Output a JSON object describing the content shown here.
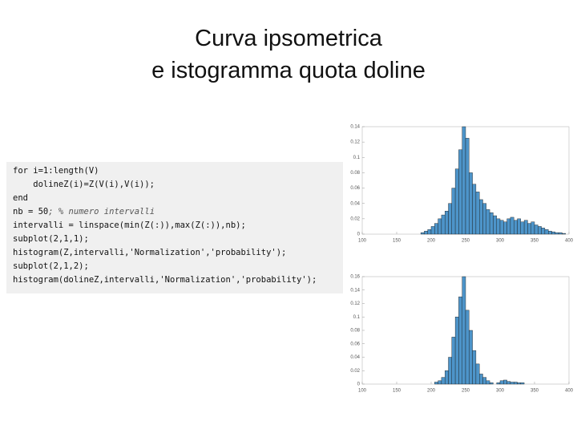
{
  "title": {
    "lines": [
      "Curva ipsometrica",
      "e istogramma quota doline"
    ]
  },
  "code": {
    "lines": [
      "for i=1:length(V)",
      "    dolineZ(i)=Z(V(i),V(i));",
      "end",
      {
        "code": "nb = 50",
        "comment": "; % numero intervalli"
      },
      "intervalli = linspace(min(Z(:)),max(Z(:)),nb);",
      "subplot(2,1,1);",
      "histogram(Z,intervalli,'Normalization','probability');",
      "subplot(2,1,2);",
      "histogram(dolineZ,intervalli,'Normalization','probability');"
    ]
  },
  "chart_data": [
    {
      "type": "histogram",
      "color": "#4d94c9",
      "bins": [
        185,
        190,
        195,
        200,
        205,
        210,
        215,
        220,
        225,
        230,
        235,
        240,
        245,
        250,
        255,
        260,
        265,
        270,
        275,
        280,
        285,
        290,
        295,
        300,
        305,
        310,
        315,
        320,
        325,
        330,
        335,
        340,
        345,
        350,
        355,
        360,
        365,
        370,
        375,
        380,
        385,
        390,
        395
      ],
      "values": [
        0.002,
        0.004,
        0.006,
        0.01,
        0.014,
        0.02,
        0.025,
        0.03,
        0.04,
        0.06,
        0.085,
        0.11,
        0.14,
        0.125,
        0.08,
        0.065,
        0.055,
        0.045,
        0.04,
        0.032,
        0.028,
        0.024,
        0.02,
        0.018,
        0.016,
        0.02,
        0.022,
        0.018,
        0.02,
        0.016,
        0.018,
        0.014,
        0.016,
        0.012,
        0.01,
        0.008,
        0.006,
        0.004,
        0.003,
        0.002,
        0.002,
        0.001
      ],
      "xlim": [
        100,
        400
      ],
      "xticks": [
        100,
        150,
        200,
        250,
        300,
        350,
        400
      ],
      "ylim": [
        0,
        0.14
      ],
      "yticks": [
        0,
        0.02,
        0.04,
        0.06,
        0.08,
        0.1,
        0.12,
        0.14
      ]
    },
    {
      "type": "histogram",
      "color": "#4d94c9",
      "bins": [
        185,
        190,
        195,
        200,
        205,
        210,
        215,
        220,
        225,
        230,
        235,
        240,
        245,
        250,
        255,
        260,
        265,
        270,
        275,
        280,
        285,
        290,
        295,
        300,
        305,
        310,
        315,
        320,
        325,
        330,
        335,
        340,
        345,
        350,
        355,
        360,
        365,
        370,
        375,
        380,
        385,
        390,
        395
      ],
      "values": [
        0,
        0,
        0,
        0,
        0.003,
        0.005,
        0.01,
        0.02,
        0.04,
        0.07,
        0.1,
        0.13,
        0.16,
        0.11,
        0.08,
        0.05,
        0.03,
        0.015,
        0.01,
        0.005,
        0.002,
        0,
        0.002,
        0.005,
        0.006,
        0.004,
        0.003,
        0.003,
        0.002,
        0.002,
        0,
        0,
        0,
        0,
        0,
        0,
        0,
        0,
        0,
        0,
        0,
        0
      ],
      "xlim": [
        100,
        400
      ],
      "xticks": [
        100,
        150,
        200,
        250,
        300,
        350,
        400
      ],
      "ylim": [
        0,
        0.16
      ],
      "yticks": [
        0,
        0.02,
        0.04,
        0.06,
        0.08,
        0.1,
        0.12,
        0.14,
        0.16
      ]
    }
  ]
}
